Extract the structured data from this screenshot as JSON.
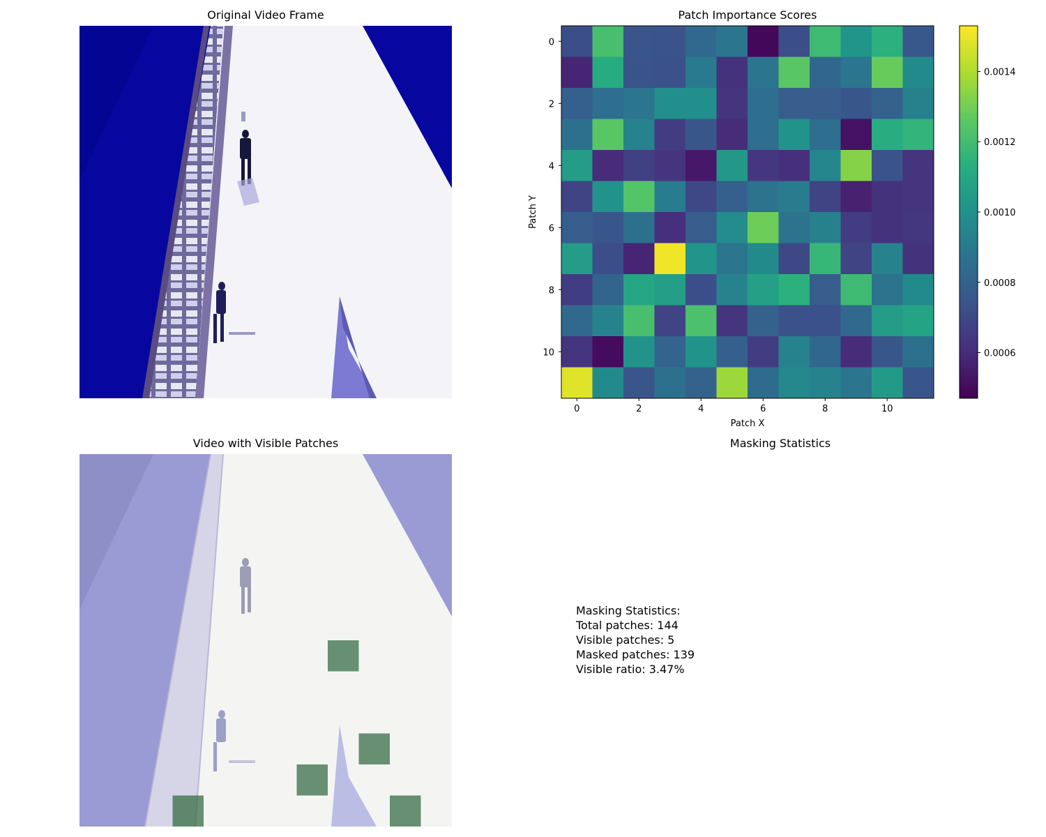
{
  "panels": {
    "original_title": "Original Video Frame",
    "heatmap_title": "Patch Importance Scores",
    "visible_title": "Video with Visible Patches",
    "stats_title": "Masking Statistics"
  },
  "stats": {
    "heading": "Masking Statistics:",
    "total": "Total patches: 144",
    "visible": "Visible patches: 5",
    "masked": "Masked patches: 139",
    "ratio": "Visible ratio: 3.47%"
  },
  "chart_data": [
    {
      "type": "image",
      "title": "Original Video Frame",
      "description_colors": {
        "sky": "#0a0aa6",
        "building": "#f2f2f6",
        "tower": "#4a3a6a"
      }
    },
    {
      "type": "heatmap",
      "title": "Patch Importance Scores",
      "xlabel": "Patch X",
      "ylabel": "Patch Y",
      "xticks": [
        0,
        2,
        4,
        6,
        8,
        10
      ],
      "yticks": [
        0,
        2,
        4,
        6,
        8,
        10
      ],
      "colormap": "viridis",
      "vmin": 0.00047,
      "vmax": 0.00153,
      "colorbar_ticks": [
        "0.0006",
        "0.0008",
        "0.0010",
        "0.0012",
        "0.0014"
      ],
      "colorbar_tick_values": [
        0.0006,
        0.0008,
        0.001,
        0.0012,
        0.0014
      ],
      "values": [
        [
          0.00072,
          0.00121,
          0.00075,
          0.00074,
          0.00083,
          0.00088,
          0.00049,
          0.00072,
          0.00119,
          0.00102,
          0.00114,
          0.00076
        ],
        [
          0.00058,
          0.00112,
          0.00074,
          0.00073,
          0.0009,
          0.00062,
          0.00088,
          0.00125,
          0.00082,
          0.00088,
          0.00128,
          0.00097
        ],
        [
          0.00079,
          0.00085,
          0.00088,
          0.00099,
          0.00099,
          0.00063,
          0.00085,
          0.00078,
          0.00078,
          0.00075,
          0.0008,
          0.00093
        ],
        [
          0.00086,
          0.00125,
          0.00094,
          0.00066,
          0.00075,
          0.0006,
          0.00085,
          0.00101,
          0.00085,
          0.00052,
          0.00113,
          0.00116
        ],
        [
          0.00105,
          0.0006,
          0.00067,
          0.00063,
          0.00054,
          0.00103,
          0.00064,
          0.00061,
          0.00095,
          0.00133,
          0.00074,
          0.00063
        ],
        [
          0.00068,
          0.00101,
          0.00124,
          0.00091,
          0.0007,
          0.00079,
          0.00087,
          0.00091,
          0.00068,
          0.00057,
          0.00062,
          0.00063
        ],
        [
          0.00078,
          0.00075,
          0.00086,
          0.00061,
          0.00078,
          0.00098,
          0.00129,
          0.00087,
          0.00093,
          0.00066,
          0.00062,
          0.00064
        ],
        [
          0.00105,
          0.00072,
          0.00058,
          0.00151,
          0.00102,
          0.00088,
          0.00097,
          0.0007,
          0.00117,
          0.00068,
          0.00094,
          0.00062
        ],
        [
          0.00066,
          0.00081,
          0.00109,
          0.00106,
          0.00072,
          0.00094,
          0.00107,
          0.00114,
          0.00078,
          0.00119,
          0.00087,
          0.00097
        ],
        [
          0.00083,
          0.00094,
          0.00121,
          0.00068,
          0.00122,
          0.00063,
          0.0008,
          0.00073,
          0.00073,
          0.00083,
          0.00105,
          0.00108
        ],
        [
          0.00063,
          0.0005,
          0.00101,
          0.00081,
          0.00101,
          0.00079,
          0.00066,
          0.00094,
          0.00082,
          0.0006,
          0.00075,
          0.00086
        ],
        [
          0.00148,
          0.00097,
          0.00075,
          0.00086,
          0.0008,
          0.00137,
          0.00084,
          0.00096,
          0.00094,
          0.00088,
          0.00104,
          0.00075
        ]
      ]
    },
    {
      "type": "image",
      "title": "Video with Visible Patches",
      "visible_patches_rowcol": [
        [
          6,
          8
        ],
        [
          9,
          9
        ],
        [
          10,
          7
        ],
        [
          11,
          3
        ],
        [
          11,
          10
        ]
      ]
    }
  ]
}
